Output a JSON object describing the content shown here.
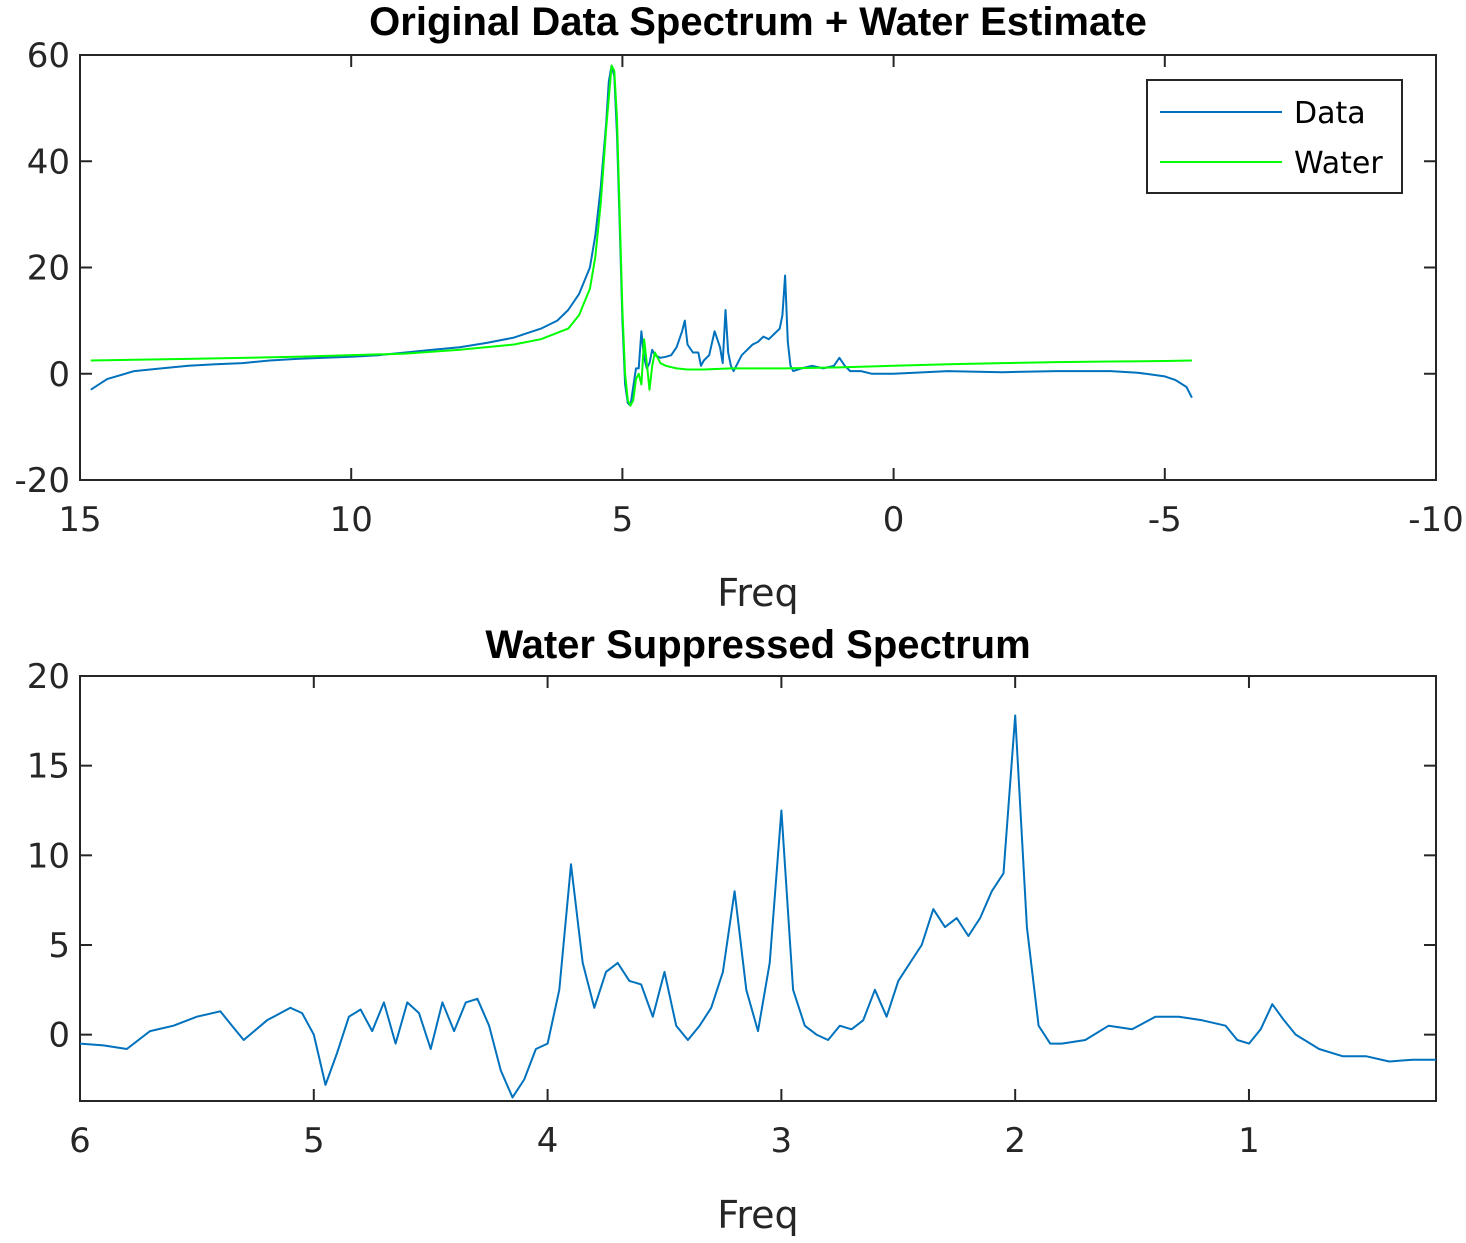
{
  "chart_data": [
    {
      "type": "line",
      "title": "Original Data Spectrum + Water Estimate",
      "xlabel": "Freq",
      "ylabel": "",
      "xlim": [
        15,
        -10
      ],
      "ylim": [
        -20,
        60
      ],
      "x_reversed": true,
      "xticks": [
        15,
        10,
        5,
        0,
        -5,
        -10
      ],
      "xtick_labels": [
        "15",
        "10",
        "5",
        "0",
        "-5",
        "-10"
      ],
      "yticks": [
        -20,
        0,
        20,
        40,
        60
      ],
      "ytick_labels": [
        "-20",
        "0",
        "20",
        "40",
        "60"
      ],
      "legend": {
        "placement": "top-right",
        "entries": [
          "Data",
          "Water"
        ]
      },
      "series": [
        {
          "name": "Data",
          "color": "#0072BD",
          "x": [
            14.8,
            14.5,
            14.0,
            13.5,
            13.0,
            12.5,
            12.0,
            11.5,
            11.0,
            10.5,
            10.0,
            9.5,
            9.0,
            8.5,
            8.0,
            7.5,
            7.0,
            6.5,
            6.2,
            6.0,
            5.8,
            5.6,
            5.5,
            5.4,
            5.3,
            5.25,
            5.2,
            5.15,
            5.1,
            5.05,
            5.0,
            4.95,
            4.9,
            4.85,
            4.8,
            4.75,
            4.7,
            4.65,
            4.6,
            4.55,
            4.5,
            4.45,
            4.4,
            4.3,
            4.2,
            4.1,
            4.0,
            3.9,
            3.85,
            3.8,
            3.7,
            3.6,
            3.55,
            3.5,
            3.4,
            3.3,
            3.2,
            3.15,
            3.1,
            3.05,
            3.0,
            2.95,
            2.9,
            2.8,
            2.7,
            2.6,
            2.5,
            2.4,
            2.3,
            2.2,
            2.1,
            2.05,
            2.0,
            1.95,
            1.9,
            1.85,
            1.7,
            1.5,
            1.3,
            1.1,
            1.0,
            0.9,
            0.8,
            0.6,
            0.4,
            0.0,
            -1.0,
            -2.0,
            -3.0,
            -4.0,
            -4.5,
            -5.0,
            -5.2,
            -5.4,
            -5.5
          ],
          "y": [
            -3.0,
            -1.0,
            0.5,
            1.0,
            1.5,
            1.8,
            2.0,
            2.5,
            2.8,
            3.0,
            3.2,
            3.5,
            4.0,
            4.5,
            5.0,
            5.8,
            6.8,
            8.5,
            10.0,
            12.0,
            15.0,
            20.0,
            26.0,
            35.0,
            47.0,
            55.0,
            58.0,
            56.0,
            45.0,
            28.0,
            10.0,
            -2.0,
            -5.5,
            -6.0,
            -2.5,
            1.0,
            1.0,
            8.0,
            3.0,
            1.0,
            2.0,
            4.5,
            3.5,
            3.0,
            3.2,
            3.5,
            5.0,
            8.0,
            10.0,
            5.5,
            4.0,
            4.0,
            1.5,
            2.5,
            3.5,
            8.0,
            5.0,
            2.0,
            12.0,
            4.0,
            1.5,
            0.5,
            1.5,
            3.5,
            4.5,
            5.5,
            6.0,
            7.0,
            6.5,
            7.5,
            8.5,
            11.0,
            18.5,
            6.0,
            1.5,
            0.5,
            1.0,
            1.5,
            1.0,
            1.5,
            3.0,
            1.5,
            0.5,
            0.5,
            0.0,
            0.0,
            0.5,
            0.3,
            0.5,
            0.5,
            0.2,
            -0.5,
            -1.2,
            -2.5,
            -4.5
          ]
        },
        {
          "name": "Water",
          "color": "#00FF00",
          "x": [
            14.8,
            13.0,
            11.0,
            9.0,
            8.0,
            7.0,
            6.5,
            6.0,
            5.8,
            5.6,
            5.5,
            5.4,
            5.3,
            5.2,
            5.15,
            5.1,
            5.05,
            5.0,
            4.95,
            4.9,
            4.85,
            4.8,
            4.75,
            4.7,
            4.65,
            4.6,
            4.55,
            4.5,
            4.45,
            4.4,
            4.35,
            4.3,
            4.2,
            4.0,
            3.8,
            3.5,
            3.0,
            2.0,
            1.0,
            0.0,
            -1.0,
            -2.0,
            -3.0,
            -4.0,
            -5.0,
            -5.5
          ],
          "y": [
            2.5,
            2.8,
            3.2,
            3.8,
            4.5,
            5.5,
            6.5,
            8.5,
            11.0,
            16.0,
            22.0,
            32.0,
            46.0,
            58.0,
            57.0,
            48.0,
            30.0,
            12.0,
            0.0,
            -5.0,
            -6.0,
            -5.0,
            -1.0,
            0.0,
            -2.0,
            6.5,
            2.0,
            -3.0,
            1.5,
            4.0,
            3.0,
            2.0,
            1.5,
            1.0,
            0.8,
            0.8,
            1.0,
            1.0,
            1.2,
            1.5,
            1.8,
            2.0,
            2.2,
            2.3,
            2.4,
            2.5
          ]
        }
      ]
    },
    {
      "type": "line",
      "title": "Water Suppressed Spectrum",
      "xlabel": "Freq",
      "ylabel": "",
      "xlim": [
        6,
        0.2
      ],
      "ylim": [
        -3.7,
        20
      ],
      "x_reversed": true,
      "xticks": [
        6,
        5,
        4,
        3,
        2,
        1
      ],
      "xtick_labels": [
        "6",
        "5",
        "4",
        "3",
        "2",
        "1"
      ],
      "yticks": [
        0,
        5,
        10,
        15,
        20
      ],
      "ytick_labels": [
        "0",
        "5",
        "10",
        "15",
        "20"
      ],
      "series": [
        {
          "name": "Water Suppressed",
          "color": "#0072BD",
          "x": [
            6.0,
            5.9,
            5.8,
            5.7,
            5.6,
            5.5,
            5.4,
            5.35,
            5.3,
            5.2,
            5.1,
            5.05,
            5.0,
            4.95,
            4.9,
            4.85,
            4.8,
            4.75,
            4.7,
            4.65,
            4.6,
            4.55,
            4.5,
            4.45,
            4.4,
            4.35,
            4.3,
            4.25,
            4.2,
            4.15,
            4.1,
            4.05,
            4.0,
            3.95,
            3.9,
            3.85,
            3.8,
            3.75,
            3.7,
            3.65,
            3.6,
            3.55,
            3.5,
            3.45,
            3.4,
            3.35,
            3.3,
            3.25,
            3.2,
            3.15,
            3.1,
            3.05,
            3.0,
            2.95,
            2.9,
            2.85,
            2.8,
            2.75,
            2.7,
            2.65,
            2.6,
            2.55,
            2.5,
            2.45,
            2.4,
            2.35,
            2.3,
            2.25,
            2.2,
            2.15,
            2.1,
            2.05,
            2.0,
            1.95,
            1.9,
            1.85,
            1.8,
            1.7,
            1.6,
            1.5,
            1.4,
            1.3,
            1.2,
            1.1,
            1.05,
            1.0,
            0.95,
            0.9,
            0.85,
            0.8,
            0.7,
            0.6,
            0.5,
            0.4,
            0.3,
            0.2
          ],
          "y": [
            -0.5,
            -0.6,
            -0.8,
            0.2,
            0.5,
            1.0,
            1.3,
            0.5,
            -0.3,
            0.8,
            1.5,
            1.2,
            0.0,
            -2.8,
            -1.0,
            1.0,
            1.4,
            0.2,
            1.8,
            -0.5,
            1.8,
            1.2,
            -0.8,
            1.8,
            0.2,
            1.8,
            2.0,
            0.5,
            -2.0,
            -3.5,
            -2.5,
            -0.8,
            -0.5,
            2.5,
            9.5,
            4.0,
            1.5,
            3.5,
            4.0,
            3.0,
            2.8,
            1.0,
            3.5,
            0.5,
            -0.3,
            0.5,
            1.5,
            3.5,
            8.0,
            2.5,
            0.2,
            4.0,
            12.5,
            2.5,
            0.5,
            0.0,
            -0.3,
            0.5,
            0.3,
            0.8,
            2.5,
            1.0,
            3.0,
            4.0,
            5.0,
            7.0,
            6.0,
            6.5,
            5.5,
            6.5,
            8.0,
            9.0,
            17.8,
            6.0,
            0.5,
            -0.5,
            -0.5,
            -0.3,
            0.5,
            0.3,
            1.0,
            1.0,
            0.8,
            0.5,
            -0.3,
            -0.5,
            0.3,
            1.7,
            0.8,
            0.0,
            -0.8,
            -1.2,
            -1.2,
            -1.5,
            -1.4,
            -1.4
          ]
        }
      ]
    }
  ]
}
